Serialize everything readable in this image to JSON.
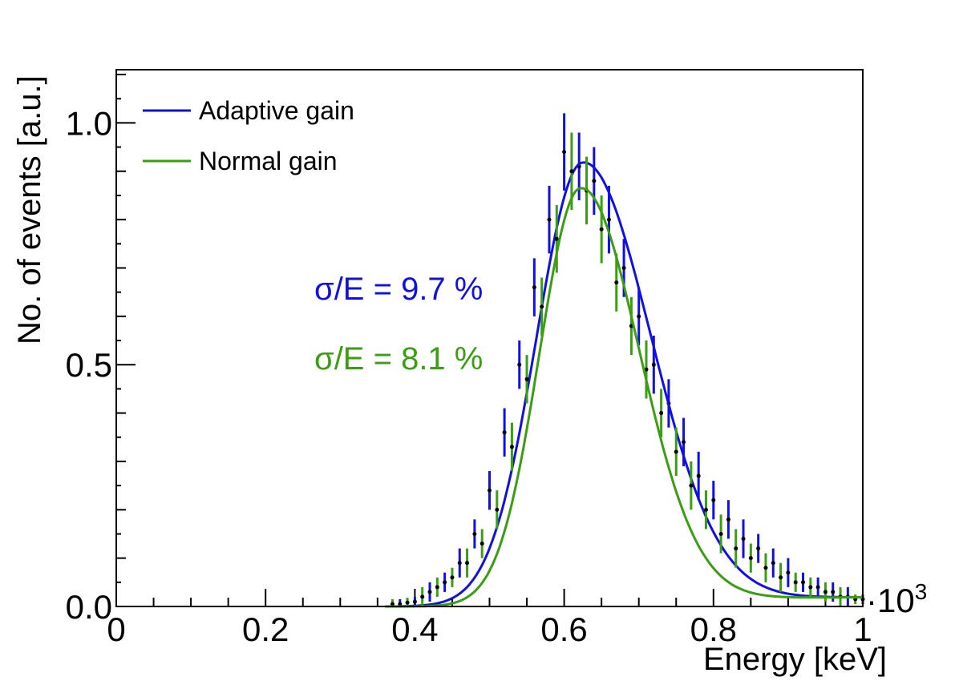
{
  "chart_data": {
    "type": "scatter",
    "xlabel": "Energy [keV]",
    "ylabel": "No. of events [a.u.]",
    "x_multiplier": "·10",
    "x_multiplier_exp": "3",
    "xlim": [
      0,
      1
    ],
    "ylim": [
      0,
      1.11
    ],
    "xticks": [
      0,
      0.2,
      0.4,
      0.6,
      0.8,
      1
    ],
    "xtick_labels": [
      "0",
      "0.2",
      "0.4",
      "0.6",
      "0.8",
      "1"
    ],
    "yticks": [
      0,
      0.5,
      1.0
    ],
    "ytick_labels": [
      "0.0",
      "0.5",
      "1.0"
    ],
    "legend_position": "top-left",
    "series": [
      {
        "name": "Adaptive gain",
        "color": "#1010e6",
        "fit": {
          "peak": 0.625,
          "amplitude": 0.918,
          "sigma_left": 0.062,
          "sigma_right": 0.09
        },
        "annotation": "σ/E = 9.7 %",
        "x": [
          0.38,
          0.4,
          0.42,
          0.44,
          0.46,
          0.48,
          0.5,
          0.52,
          0.54,
          0.56,
          0.58,
          0.6,
          0.62,
          0.64,
          0.66,
          0.68,
          0.7,
          0.72,
          0.74,
          0.76,
          0.78,
          0.8,
          0.82,
          0.84,
          0.86,
          0.88,
          0.9,
          0.92,
          0.94,
          0.96,
          0.98,
          1.0
        ],
        "y": [
          0.005,
          0.01,
          0.03,
          0.05,
          0.09,
          0.15,
          0.24,
          0.36,
          0.5,
          0.66,
          0.8,
          0.94,
          0.91,
          0.88,
          0.8,
          0.7,
          0.6,
          0.5,
          0.42,
          0.34,
          0.27,
          0.22,
          0.18,
          0.14,
          0.12,
          0.09,
          0.07,
          0.05,
          0.04,
          0.03,
          0.02,
          0.015
        ],
        "err": [
          0.01,
          0.01,
          0.02,
          0.02,
          0.03,
          0.03,
          0.04,
          0.05,
          0.05,
          0.06,
          0.07,
          0.08,
          0.07,
          0.07,
          0.07,
          0.06,
          0.06,
          0.06,
          0.05,
          0.05,
          0.05,
          0.04,
          0.04,
          0.04,
          0.03,
          0.03,
          0.03,
          0.02,
          0.02,
          0.02,
          0.02,
          0.01
        ]
      },
      {
        "name": "Normal gain",
        "color": "#3a9e12",
        "fit": {
          "peak": 0.622,
          "amplitude": 0.865,
          "sigma_left": 0.055,
          "sigma_right": 0.078
        },
        "annotation": "σ/E = 8.1 %",
        "x": [
          0.37,
          0.39,
          0.41,
          0.43,
          0.45,
          0.47,
          0.49,
          0.51,
          0.53,
          0.55,
          0.57,
          0.59,
          0.61,
          0.63,
          0.65,
          0.67,
          0.69,
          0.71,
          0.73,
          0.75,
          0.77,
          0.79,
          0.81,
          0.83,
          0.85,
          0.87,
          0.89,
          0.91,
          0.93,
          0.95,
          0.97,
          0.99
        ],
        "y": [
          0.005,
          0.008,
          0.02,
          0.04,
          0.06,
          0.09,
          0.13,
          0.2,
          0.33,
          0.47,
          0.62,
          0.76,
          0.9,
          0.86,
          0.78,
          0.67,
          0.58,
          0.49,
          0.4,
          0.32,
          0.25,
          0.2,
          0.15,
          0.12,
          0.1,
          0.08,
          0.06,
          0.05,
          0.04,
          0.03,
          0.02,
          0.015
        ],
        "err": [
          0.01,
          0.01,
          0.02,
          0.02,
          0.02,
          0.03,
          0.03,
          0.04,
          0.05,
          0.05,
          0.06,
          0.07,
          0.08,
          0.07,
          0.07,
          0.06,
          0.06,
          0.06,
          0.05,
          0.05,
          0.05,
          0.04,
          0.04,
          0.04,
          0.03,
          0.03,
          0.03,
          0.02,
          0.02,
          0.02,
          0.02,
          0.01
        ]
      }
    ]
  }
}
